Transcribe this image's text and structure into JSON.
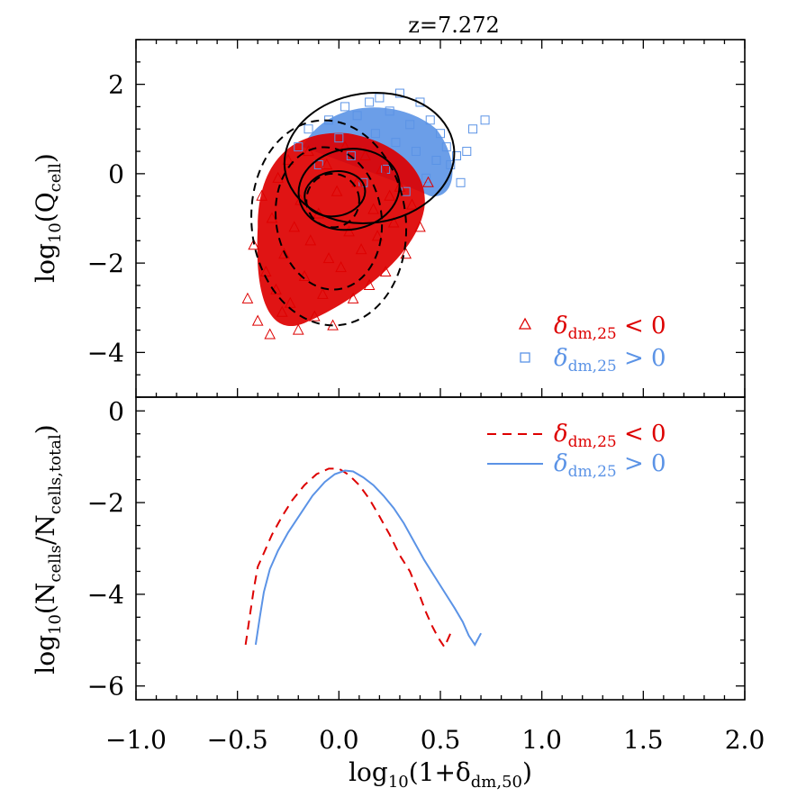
{
  "title": "z=7.272",
  "colors": {
    "red": "#dd0000",
    "blue": "#5b93e6",
    "black": "#000000"
  },
  "chart_data": [
    {
      "type": "scatter",
      "panel": "top",
      "xlim": [
        -1.0,
        2.0
      ],
      "ylim": [
        -5.0,
        3.0
      ],
      "ylabel": "log10(Qcell)",
      "y_ticks": [
        "−4",
        "−2",
        "0",
        "2"
      ],
      "y_tick_values": [
        -4,
        -2,
        0,
        2
      ],
      "legend_placement": "bottom-right",
      "series": [
        {
          "name": "δdm,25 < 0",
          "marker": "triangle",
          "color": "#dd0000",
          "points": [
            [
              -0.45,
              -2.8
            ],
            [
              -0.42,
              -1.6
            ],
            [
              -0.4,
              -3.3
            ],
            [
              -0.38,
              -0.5
            ],
            [
              -0.36,
              -2.2
            ],
            [
              -0.34,
              -3.6
            ],
            [
              -0.33,
              -1.0
            ],
            [
              -0.31,
              -2.6
            ],
            [
              -0.3,
              -0.1
            ],
            [
              -0.28,
              -3.1
            ],
            [
              -0.27,
              -1.8
            ],
            [
              -0.25,
              0.3
            ],
            [
              -0.24,
              -2.9
            ],
            [
              -0.22,
              -1.2
            ],
            [
              -0.2,
              -3.5
            ],
            [
              -0.19,
              -0.6
            ],
            [
              -0.17,
              -2.3
            ],
            [
              -0.15,
              0.5
            ],
            [
              -0.14,
              -1.5
            ],
            [
              -0.12,
              -3.2
            ],
            [
              -0.1,
              -0.9
            ],
            [
              -0.08,
              -2.7
            ],
            [
              -0.06,
              0.2
            ],
            [
              -0.05,
              -1.9
            ],
            [
              -0.03,
              -3.4
            ],
            [
              -0.01,
              -0.4
            ],
            [
              0.01,
              -2.1
            ],
            [
              0.03,
              0.6
            ],
            [
              0.05,
              -1.3
            ],
            [
              0.07,
              -2.8
            ],
            [
              0.09,
              -0.2
            ],
            [
              0.11,
              -1.7
            ],
            [
              0.13,
              0.4
            ],
            [
              0.15,
              -2.5
            ],
            [
              0.17,
              -0.8
            ],
            [
              0.19,
              -1.4
            ],
            [
              0.21,
              0.1
            ],
            [
              0.23,
              -2.2
            ],
            [
              0.25,
              -0.5
            ],
            [
              0.27,
              -1.1
            ],
            [
              0.3,
              -0.3
            ],
            [
              0.33,
              -1.8
            ],
            [
              0.36,
              -0.7
            ],
            [
              0.4,
              -1.2
            ],
            [
              0.44,
              -0.2
            ]
          ]
        },
        {
          "name": "δdm,25 > 0",
          "marker": "square",
          "color": "#5b93e6",
          "points": [
            [
              -0.2,
              0.6
            ],
            [
              -0.15,
              1.0
            ],
            [
              -0.1,
              0.2
            ],
            [
              -0.05,
              1.2
            ],
            [
              0.0,
              0.8
            ],
            [
              0.03,
              1.5
            ],
            [
              0.06,
              0.4
            ],
            [
              0.09,
              1.3
            ],
            [
              0.12,
              -0.2
            ],
            [
              0.15,
              1.6
            ],
            [
              0.18,
              0.9
            ],
            [
              0.2,
              1.7
            ],
            [
              0.23,
              0.1
            ],
            [
              0.25,
              1.4
            ],
            [
              0.28,
              0.7
            ],
            [
              0.3,
              1.8
            ],
            [
              0.33,
              -0.4
            ],
            [
              0.35,
              1.1
            ],
            [
              0.38,
              0.5
            ],
            [
              0.4,
              1.6
            ],
            [
              0.43,
              -0.1
            ],
            [
              0.45,
              1.2
            ],
            [
              0.48,
              0.3
            ],
            [
              0.5,
              0.9
            ],
            [
              0.53,
              0.6
            ],
            [
              0.55,
              0.2
            ],
            [
              0.58,
              0.4
            ],
            [
              0.6,
              -0.2
            ],
            [
              0.63,
              0.5
            ],
            [
              0.66,
              1.0
            ],
            [
              0.72,
              1.2
            ]
          ]
        }
      ]
    },
    {
      "type": "line",
      "panel": "bottom",
      "xlim": [
        -1.0,
        2.0
      ],
      "ylim": [
        -6.3,
        0.3
      ],
      "xlabel": "log10(1+δdm,50)",
      "ylabel": "log10(Ncells/Ncells,total)",
      "x_ticks": [
        "−1.0",
        "−0.5",
        "0.0",
        "0.5",
        "1.0",
        "1.5",
        "2.0"
      ],
      "x_tick_values": [
        -1.0,
        -0.5,
        0.0,
        0.5,
        1.0,
        1.5,
        2.0
      ],
      "y_ticks": [
        "−6",
        "−4",
        "−2",
        "0"
      ],
      "y_tick_values": [
        -6,
        -4,
        -2,
        0
      ],
      "legend_placement": "top-right",
      "series": [
        {
          "name": "δdm,25 < 0",
          "style": "dashed",
          "color": "#dd0000",
          "x": [
            -0.46,
            -0.44,
            -0.42,
            -0.4,
            -0.37,
            -0.33,
            -0.28,
            -0.23,
            -0.17,
            -0.11,
            -0.05,
            0.0,
            0.05,
            0.1,
            0.15,
            0.2,
            0.25,
            0.3,
            0.35,
            0.4,
            0.43,
            0.46,
            0.49,
            0.52,
            0.55
          ],
          "y": [
            -5.1,
            -4.5,
            -3.9,
            -3.4,
            -3.1,
            -2.7,
            -2.3,
            -1.95,
            -1.62,
            -1.38,
            -1.26,
            -1.26,
            -1.4,
            -1.62,
            -1.92,
            -2.3,
            -2.7,
            -3.15,
            -3.5,
            -4.05,
            -4.4,
            -4.7,
            -4.95,
            -5.15,
            -4.85
          ]
        },
        {
          "name": "δdm,25 > 0",
          "style": "solid",
          "color": "#5b93e6",
          "x": [
            -0.41,
            -0.39,
            -0.37,
            -0.34,
            -0.3,
            -0.25,
            -0.19,
            -0.13,
            -0.07,
            -0.02,
            0.03,
            0.07,
            0.12,
            0.17,
            0.22,
            0.27,
            0.32,
            0.37,
            0.42,
            0.47,
            0.52,
            0.57,
            0.61,
            0.64,
            0.67,
            0.7
          ],
          "y": [
            -5.1,
            -4.5,
            -3.95,
            -3.45,
            -3.05,
            -2.65,
            -2.25,
            -1.85,
            -1.55,
            -1.38,
            -1.3,
            -1.32,
            -1.45,
            -1.62,
            -1.85,
            -2.12,
            -2.45,
            -2.85,
            -3.25,
            -3.6,
            -3.95,
            -4.3,
            -4.6,
            -4.9,
            -5.1,
            -4.85
          ]
        }
      ]
    }
  ]
}
